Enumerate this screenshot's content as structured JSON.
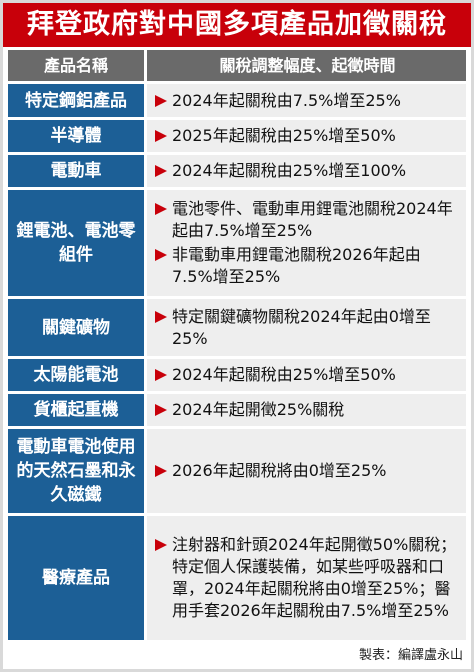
{
  "title": "拜登政府對中國多項產品加徵關稅",
  "header": {
    "product": "產品名稱",
    "detail": "關稅調整幅度、起徵時間"
  },
  "rows": [
    {
      "product": "特定鋼鋁產品",
      "items": [
        "2024年起關稅由7.5%增至25%"
      ]
    },
    {
      "product": "半導體",
      "items": [
        "2025年起關稅由25%增至50%"
      ]
    },
    {
      "product": "電動車",
      "items": [
        "2024年起關稅由25%增至100%"
      ]
    },
    {
      "product": "鋰電池、電池零組件",
      "items": [
        "電池零件、電動車用鋰電池關稅2024年起由7.5%增至25%",
        "非電動車用鋰電池關稅2026年起由7.5%增至25%"
      ]
    },
    {
      "product": "關鍵礦物",
      "items": [
        "特定關鍵礦物關稅2024年起由0增至25%"
      ]
    },
    {
      "product": "太陽能電池",
      "items": [
        "2024年起關稅由25%增至50%"
      ]
    },
    {
      "product": "貨櫃起重機",
      "items": [
        "2024年起開徵25%關稅"
      ]
    },
    {
      "product": "電動車電池使用的天然石墨和永久磁鐵",
      "items": [
        "2026年起關稅將由0增至25%"
      ]
    },
    {
      "product": "醫療產品",
      "items": [
        "注射器和針頭2024年起開徵50%關稅；特定個人保護裝備，如某些呼吸器和口罩，2024年起關稅將由0增至25%；醫用手套2026年起關稅由7.5%增至25%"
      ]
    }
  ],
  "credit": "製表：編譯盧永山",
  "colors": {
    "title_bg": "#c8000a",
    "header_bg": "#6a6a6a",
    "product_bg": "#1c5f96",
    "detail_bg": "#eeeeee",
    "bullet": "#c8000a"
  }
}
